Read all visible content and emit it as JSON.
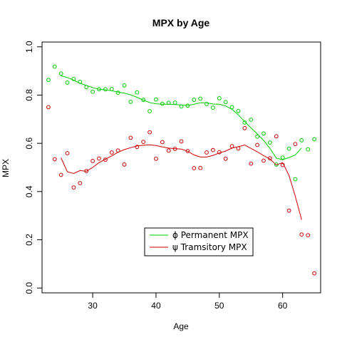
{
  "chart_data": {
    "type": "scatter",
    "title": "MPX by Age",
    "xlabel": "Age",
    "ylabel": "MPX",
    "xlim": [
      22,
      66
    ],
    "ylim": [
      -0.02,
      1.02
    ],
    "x_ticks": [
      30,
      40,
      50,
      60
    ],
    "y_ticks": [
      0.0,
      0.2,
      0.4,
      0.6,
      0.8,
      1.0
    ],
    "y_tick_labels": [
      "0.0",
      "0.2",
      "0.4",
      "0.6",
      "0.8",
      "1.0"
    ],
    "grid": false,
    "legend": {
      "position": "bottom-center",
      "entries": [
        {
          "label": "ϕ Permanent MPX",
          "color": "#00cc00"
        },
        {
          "label": "ψ Tramsitory MPX",
          "color": "#cc0000"
        }
      ]
    },
    "series": [
      {
        "name": "ϕ Permanent MPX",
        "color": "#00cc00",
        "points": [
          [
            23,
            0.863
          ],
          [
            24,
            0.918
          ],
          [
            25,
            0.889
          ],
          [
            26,
            0.852
          ],
          [
            27,
            0.867
          ],
          [
            28,
            0.855
          ],
          [
            29,
            0.833
          ],
          [
            30,
            0.814
          ],
          [
            31,
            0.824
          ],
          [
            32,
            0.824
          ],
          [
            33,
            0.825
          ],
          [
            34,
            0.81
          ],
          [
            35,
            0.84
          ],
          [
            36,
            0.772
          ],
          [
            37,
            0.811
          ],
          [
            38,
            0.78
          ],
          [
            39,
            0.733
          ],
          [
            40,
            0.782
          ],
          [
            41,
            0.764
          ],
          [
            42,
            0.768
          ],
          [
            43,
            0.769
          ],
          [
            44,
            0.753
          ],
          [
            45,
            0.756
          ],
          [
            46,
            0.78
          ],
          [
            47,
            0.785
          ],
          [
            48,
            0.763
          ],
          [
            49,
            0.748
          ],
          [
            50,
            0.787
          ],
          [
            51,
            0.771
          ],
          [
            52,
            0.75
          ],
          [
            53,
            0.734
          ],
          [
            54,
            0.686
          ],
          [
            55,
            0.698
          ],
          [
            56,
            0.628
          ],
          [
            57,
            0.641
          ],
          [
            58,
            0.603
          ],
          [
            59,
            0.512
          ],
          [
            60,
            0.541
          ],
          [
            61,
            0.578
          ],
          [
            62,
            0.451
          ],
          [
            63,
            0.613
          ],
          [
            64,
            0.575
          ],
          [
            65,
            0.617
          ]
        ],
        "smooth": [
          [
            25,
            0.88
          ],
          [
            26,
            0.873
          ],
          [
            27,
            0.862
          ],
          [
            28,
            0.849
          ],
          [
            29,
            0.84
          ],
          [
            30,
            0.831
          ],
          [
            31,
            0.824
          ],
          [
            32,
            0.822
          ],
          [
            33,
            0.818
          ],
          [
            34,
            0.813
          ],
          [
            35,
            0.808
          ],
          [
            36,
            0.801
          ],
          [
            37,
            0.791
          ],
          [
            38,
            0.779
          ],
          [
            39,
            0.769
          ],
          [
            40,
            0.764
          ],
          [
            41,
            0.762
          ],
          [
            42,
            0.762
          ],
          [
            43,
            0.761
          ],
          [
            44,
            0.759
          ],
          [
            45,
            0.757
          ],
          [
            46,
            0.762
          ],
          [
            47,
            0.768
          ],
          [
            48,
            0.768
          ],
          [
            49,
            0.763
          ],
          [
            50,
            0.762
          ],
          [
            51,
            0.755
          ],
          [
            52,
            0.741
          ],
          [
            53,
            0.718
          ],
          [
            54,
            0.69
          ],
          [
            55,
            0.664
          ],
          [
            56,
            0.639
          ],
          [
            57,
            0.612
          ],
          [
            58,
            0.579
          ],
          [
            59,
            0.539
          ],
          [
            60,
            0.532
          ],
          [
            61,
            0.541
          ],
          [
            62,
            0.552
          ],
          [
            63,
            0.581
          ]
        ]
      },
      {
        "name": "ψ Tramsitory MPX",
        "color": "#cc0000",
        "points": [
          [
            23,
            0.75
          ],
          [
            24,
            0.534
          ],
          [
            25,
            0.469
          ],
          [
            26,
            0.559
          ],
          [
            27,
            0.417
          ],
          [
            28,
            0.435
          ],
          [
            29,
            0.485
          ],
          [
            30,
            0.527
          ],
          [
            31,
            0.537
          ],
          [
            32,
            0.532
          ],
          [
            33,
            0.562
          ],
          [
            34,
            0.57
          ],
          [
            35,
            0.512
          ],
          [
            36,
            0.623
          ],
          [
            37,
            0.585
          ],
          [
            38,
            0.606
          ],
          [
            39,
            0.646
          ],
          [
            40,
            0.536
          ],
          [
            41,
            0.605
          ],
          [
            42,
            0.57
          ],
          [
            43,
            0.577
          ],
          [
            44,
            0.608
          ],
          [
            45,
            0.568
          ],
          [
            46,
            0.497
          ],
          [
            47,
            0.498
          ],
          [
            48,
            0.562
          ],
          [
            49,
            0.572
          ],
          [
            50,
            0.563
          ],
          [
            51,
            0.536
          ],
          [
            52,
            0.588
          ],
          [
            53,
            0.579
          ],
          [
            54,
            0.663
          ],
          [
            55,
            0.516
          ],
          [
            56,
            0.593
          ],
          [
            57,
            0.528
          ],
          [
            58,
            0.538
          ],
          [
            59,
            0.629
          ],
          [
            60,
            0.51
          ],
          [
            61,
            0.321
          ],
          [
            62,
            0.597
          ],
          [
            63,
            0.222
          ],
          [
            64,
            0.219
          ],
          [
            65,
            0.061
          ]
        ],
        "smooth": [
          [
            25,
            0.54
          ],
          [
            26,
            0.482
          ],
          [
            27,
            0.475
          ],
          [
            28,
            0.487
          ],
          [
            29,
            0.484
          ],
          [
            30,
            0.5
          ],
          [
            31,
            0.52
          ],
          [
            32,
            0.534
          ],
          [
            33,
            0.548
          ],
          [
            34,
            0.563
          ],
          [
            35,
            0.574
          ],
          [
            36,
            0.582
          ],
          [
            37,
            0.589
          ],
          [
            38,
            0.592
          ],
          [
            39,
            0.594
          ],
          [
            40,
            0.591
          ],
          [
            41,
            0.585
          ],
          [
            42,
            0.58
          ],
          [
            43,
            0.578
          ],
          [
            44,
            0.576
          ],
          [
            45,
            0.567
          ],
          [
            46,
            0.552
          ],
          [
            47,
            0.543
          ],
          [
            48,
            0.543
          ],
          [
            49,
            0.55
          ],
          [
            50,
            0.56
          ],
          [
            51,
            0.568
          ],
          [
            52,
            0.58
          ],
          [
            53,
            0.586
          ],
          [
            54,
            0.593
          ],
          [
            55,
            0.579
          ],
          [
            56,
            0.565
          ],
          [
            57,
            0.549
          ],
          [
            58,
            0.535
          ],
          [
            59,
            0.51
          ],
          [
            60,
            0.52
          ],
          [
            61,
            0.467
          ],
          [
            62,
            0.38
          ],
          [
            63,
            0.283
          ]
        ]
      }
    ]
  }
}
